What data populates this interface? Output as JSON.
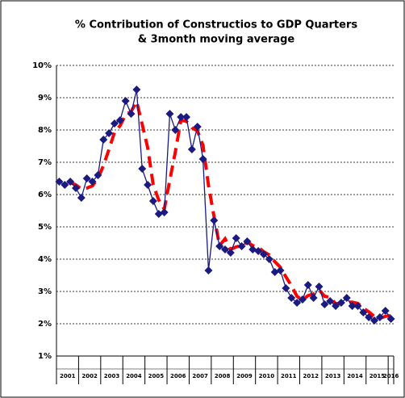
{
  "chart_data": {
    "type": "line",
    "title": "% Contribution of Constructios to GDP Quarters",
    "subtitle": "& 3month moving average",
    "categories": [
      null,
      null,
      null,
      null,
      null,
      null,
      null,
      null,
      null,
      null,
      null,
      null,
      null,
      null,
      null,
      null,
      null,
      null,
      null,
      null,
      null,
      null,
      null,
      null,
      null,
      null,
      null,
      null,
      null,
      null,
      null,
      null,
      null,
      null,
      null,
      null,
      null,
      null,
      null,
      null,
      null,
      null,
      null,
      null,
      null,
      null,
      null,
      null,
      null,
      null,
      null,
      null,
      null,
      null,
      null,
      null,
      null,
      null,
      null,
      null,
      null
    ],
    "x_groups": [
      "2001",
      "2002",
      "2003",
      "2004",
      "2005",
      "2006",
      "2007",
      "2008",
      "2009",
      "2010",
      "2011",
      "2012",
      "2013",
      "2014",
      "2015",
      "2016"
    ],
    "series": [
      {
        "color": "#1a1a80",
        "marker": "diamond",
        "values": [
          6.4,
          6.3,
          6.4,
          6.2,
          5.9,
          6.5,
          6.4,
          6.6,
          7.7,
          7.9,
          8.2,
          8.3,
          8.9,
          8.5,
          9.25,
          6.8,
          6.3,
          5.8,
          5.4,
          5.45,
          8.5,
          8.0,
          8.4,
          8.4,
          7.4,
          8.1,
          7.1,
          3.65,
          5.2,
          4.4,
          4.3,
          4.2,
          4.65,
          4.4,
          4.55,
          4.3,
          4.25,
          4.15,
          4.0,
          3.6,
          3.65,
          3.1,
          2.8,
          2.65,
          2.75,
          3.2,
          2.8,
          3.15,
          2.6,
          2.7,
          2.55,
          2.65,
          2.8,
          2.55,
          2.55,
          2.35,
          2.2,
          2.1,
          2.2,
          2.4,
          2.15
        ]
      },
      {
        "color": "#ff0000",
        "dashed": true,
        "values": [
          null,
          null,
          6.37,
          6.3,
          6.17,
          6.2,
          6.27,
          6.5,
          6.9,
          7.4,
          7.93,
          8.13,
          8.47,
          8.57,
          8.88,
          8.18,
          7.45,
          6.3,
          5.83,
          5.55,
          6.45,
          7.32,
          8.3,
          8.27,
          8.07,
          7.97,
          7.53,
          6.28,
          5.32,
          4.42,
          4.63,
          4.3,
          4.38,
          4.42,
          4.53,
          4.42,
          4.37,
          4.23,
          4.13,
          3.92,
          3.75,
          3.45,
          3.18,
          2.85,
          2.73,
          2.87,
          2.92,
          3.05,
          2.85,
          2.82,
          2.62,
          2.63,
          2.67,
          2.67,
          2.63,
          2.48,
          2.37,
          2.22,
          2.17,
          2.23,
          2.25
        ]
      }
    ],
    "ylim": [
      1,
      10
    ],
    "yticks": [
      {
        "value": 1,
        "label": "1%"
      },
      {
        "value": 2,
        "label": "2%"
      },
      {
        "value": 3,
        "label": "3%"
      },
      {
        "value": 4,
        "label": "4%"
      },
      {
        "value": 5,
        "label": "5%"
      },
      {
        "value": 6,
        "label": "6%"
      },
      {
        "value": 7,
        "label": "7%"
      },
      {
        "value": 8,
        "label": "8%"
      },
      {
        "value": 9,
        "label": "9%"
      },
      {
        "value": 10,
        "label": "10%"
      }
    ],
    "grid": true
  }
}
